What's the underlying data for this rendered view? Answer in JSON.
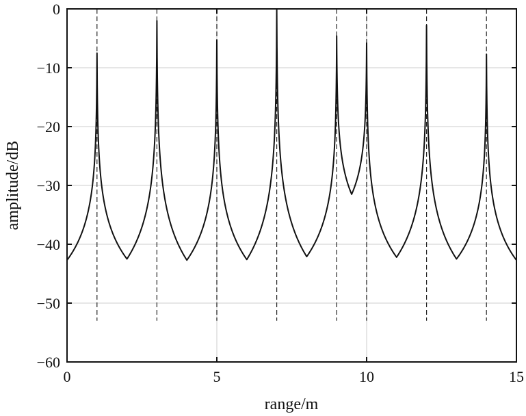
{
  "chart_data": {
    "type": "line",
    "xlabel": "range/m",
    "ylabel": "amplitude/dB",
    "xlim": [
      0,
      15
    ],
    "ylim": [
      -60,
      0
    ],
    "xticks": [
      0,
      5,
      10,
      15
    ],
    "yticks": [
      0,
      -10,
      -20,
      -30,
      -40,
      -50,
      -60
    ],
    "xtick_labels": [
      "0",
      "5",
      "10",
      "15"
    ],
    "ytick_labels": [
      "0",
      "−10",
      "−20",
      "−30",
      "−40",
      "−50",
      "−60"
    ],
    "grid": true,
    "peaks": [
      {
        "x": 1,
        "y": -7.5
      },
      {
        "x": 3,
        "y": -2
      },
      {
        "x": 5,
        "y": -5.3
      },
      {
        "x": 7,
        "y": 0
      },
      {
        "x": 9,
        "y": -4.6
      },
      {
        "x": 10,
        "y": -5.8
      },
      {
        "x": 12,
        "y": -2.8
      },
      {
        "x": 14,
        "y": -7.7
      }
    ],
    "troughs": [
      {
        "x": 0,
        "y": -42.7
      },
      {
        "x": 2,
        "y": -42.5
      },
      {
        "x": 4,
        "y": -42.7
      },
      {
        "x": 6,
        "y": -42.6
      },
      {
        "x": 8,
        "y": -42.1
      },
      {
        "x": 9.5,
        "y": -31.5
      },
      {
        "x": 11,
        "y": -42.2
      },
      {
        "x": 13,
        "y": -42.5
      },
      {
        "x": 15,
        "y": -42.7
      }
    ],
    "reference_lines": {
      "style": "dashed",
      "x": [
        1,
        3,
        5,
        7,
        9,
        10,
        12,
        14
      ],
      "y_range": [
        -53,
        0
      ]
    }
  }
}
